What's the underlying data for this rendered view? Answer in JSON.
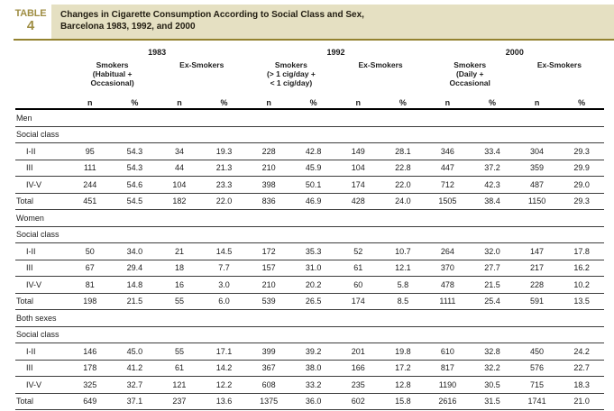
{
  "header": {
    "badge_word": "TABLE",
    "badge_number": "4",
    "title_line1": "Changes in Cigarette Consumption According to Social Class and Sex,",
    "title_line2": "Barcelona 1983, 1992, and 2000"
  },
  "colors": {
    "badge_gold": "#9f8e44",
    "rule_gold": "#93822f",
    "title_background_beige": "#e5e0c2",
    "text": "#1c1c1c"
  },
  "table": {
    "n_label": "n",
    "pct_label": "%",
    "year_groups": [
      {
        "year": "1983",
        "smoker_label_lines": [
          "Smokers",
          "(Habitual +",
          "Occasional)"
        ],
        "ex_label": "Ex-Smokers"
      },
      {
        "year": "1992",
        "smoker_label_lines": [
          "Smokers",
          "(> 1 cig/day +",
          "< 1 cig/day)"
        ],
        "ex_label": "Ex-Smokers"
      },
      {
        "year": "2000",
        "smoker_label_lines": [
          "Smokers",
          "(Daily +",
          "Occasional"
        ],
        "ex_label": "Ex-Smokers"
      }
    ],
    "sections": [
      {
        "name": "Men",
        "group_label": "Social class",
        "rows": [
          {
            "label": "I-II",
            "values": [
              "95",
              "54.3",
              "34",
              "19.3",
              "228",
              "42.8",
              "149",
              "28.1",
              "346",
              "33.4",
              "304",
              "29.3"
            ]
          },
          {
            "label": "III",
            "values": [
              "111",
              "54.3",
              "44",
              "21.3",
              "210",
              "45.9",
              "104",
              "22.8",
              "447",
              "37.2",
              "359",
              "29.9"
            ]
          },
          {
            "label": "IV-V",
            "values": [
              "244",
              "54.6",
              "104",
              "23.3",
              "398",
              "50.1",
              "174",
              "22.0",
              "712",
              "42.3",
              "487",
              "29.0"
            ]
          }
        ],
        "total": {
          "label": "Total",
          "values": [
            "451",
            "54.5",
            "182",
            "22.0",
            "836",
            "46.9",
            "428",
            "24.0",
            "1505",
            "38.4",
            "1150",
            "29.3"
          ]
        }
      },
      {
        "name": "Women",
        "group_label": "Social class",
        "rows": [
          {
            "label": "I-II",
            "values": [
              "50",
              "34.0",
              "21",
              "14.5",
              "172",
              "35.3",
              "52",
              "10.7",
              "264",
              "32.0",
              "147",
              "17.8"
            ]
          },
          {
            "label": "III",
            "values": [
              "67",
              "29.4",
              "18",
              "7.7",
              "157",
              "31.0",
              "61",
              "12.1",
              "370",
              "27.7",
              "217",
              "16.2"
            ]
          },
          {
            "label": "IV-V",
            "values": [
              "81",
              "14.8",
              "16",
              "3.0",
              "210",
              "20.2",
              "60",
              "5.8",
              "478",
              "21.5",
              "228",
              "10.2"
            ]
          }
        ],
        "total": {
          "label": "Total",
          "values": [
            "198",
            "21.5",
            "55",
            "6.0",
            "539",
            "26.5",
            "174",
            "8.5",
            "1111",
            "25.4",
            "591",
            "13.5"
          ]
        }
      },
      {
        "name": "Both sexes",
        "group_label": "Social class",
        "rows": [
          {
            "label": "I-II",
            "values": [
              "146",
              "45.0",
              "55",
              "17.1",
              "399",
              "39.2",
              "201",
              "19.8",
              "610",
              "32.8",
              "450",
              "24.2"
            ]
          },
          {
            "label": "III",
            "values": [
              "178",
              "41.2",
              "61",
              "14.2",
              "367",
              "38.0",
              "166",
              "17.2",
              "817",
              "32.2",
              "576",
              "22.7"
            ]
          },
          {
            "label": "IV-V",
            "values": [
              "325",
              "32.7",
              "121",
              "12.2",
              "608",
              "33.2",
              "235",
              "12.8",
              "1190",
              "30.5",
              "715",
              "18.3"
            ]
          }
        ],
        "total": {
          "label": "Total",
          "values": [
            "649",
            "37.1",
            "237",
            "13.6",
            "1375",
            "36.0",
            "602",
            "15.8",
            "2616",
            "31.5",
            "1741",
            "21.0"
          ]
        }
      }
    ]
  }
}
